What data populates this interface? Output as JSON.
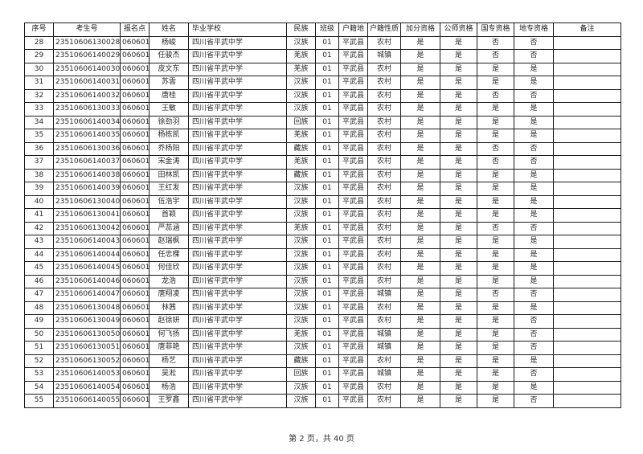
{
  "page": {
    "footer": "第 2 页，共 40 页"
  },
  "table": {
    "headers": [
      "序号",
      "考生号",
      "报名点",
      "姓名",
      "毕业学校",
      "民族",
      "班级",
      "户籍地",
      "户籍性质",
      "加分资格",
      "公师资格",
      "国专资格",
      "地专资格",
      "备注"
    ],
    "rows": [
      [
        "28",
        "23510606130028",
        "060601",
        "杨峻",
        "四川省平武中学",
        "汉族",
        "01",
        "平武县",
        "农村",
        "是",
        "是",
        "否",
        "否",
        ""
      ],
      [
        "29",
        "23510606140029",
        "060601",
        "任骏杰",
        "四川省平武中学",
        "羌族",
        "01",
        "平武县",
        "城镇",
        "是",
        "是",
        "否",
        "否",
        ""
      ],
      [
        "30",
        "23510606140030",
        "060601",
        "皮文东",
        "四川省平武中学",
        "羌族",
        "01",
        "平武县",
        "农村",
        "是",
        "是",
        "是",
        "是",
        ""
      ],
      [
        "31",
        "23510606140031",
        "060601",
        "苏雲",
        "四川省平武中学",
        "汉族",
        "01",
        "平武县",
        "农村",
        "是",
        "是",
        "是",
        "是",
        ""
      ],
      [
        "32",
        "23510606140032",
        "060601",
        "唐桂",
        "四川省平武中学",
        "汉族",
        "01",
        "平武县",
        "农村",
        "是",
        "是",
        "否",
        "否",
        ""
      ],
      [
        "33",
        "23510606130033",
        "060601",
        "王敏",
        "四川省平武中学",
        "汉族",
        "01",
        "平武县",
        "农村",
        "是",
        "是",
        "是",
        "是",
        ""
      ],
      [
        "34",
        "23510606140034",
        "060601",
        "徐劲羽",
        "四川省平武中学",
        "回族",
        "01",
        "平武县",
        "农村",
        "是",
        "是",
        "是",
        "是",
        ""
      ],
      [
        "35",
        "23510606140035",
        "060601",
        "杨栋凯",
        "四川省平武中学",
        "羌族",
        "01",
        "平武县",
        "农村",
        "是",
        "是",
        "是",
        "是",
        ""
      ],
      [
        "36",
        "23510606130036",
        "060601",
        "乔杨阳",
        "四川省平武中学",
        "藏族",
        "01",
        "平武县",
        "农村",
        "是",
        "是",
        "否",
        "否",
        ""
      ],
      [
        "37",
        "23510606140037",
        "060601",
        "宋金涛",
        "四川省平武中学",
        "羌族",
        "01",
        "平武县",
        "农村",
        "是",
        "是",
        "否",
        "否",
        ""
      ],
      [
        "38",
        "23510606140038",
        "060601",
        "田林凯",
        "四川省平武中学",
        "藏族",
        "01",
        "平武县",
        "农村",
        "是",
        "是",
        "是",
        "是",
        ""
      ],
      [
        "39",
        "23510606140039",
        "060601",
        "王红发",
        "四川省平武中学",
        "汉族",
        "01",
        "平武县",
        "农村",
        "是",
        "是",
        "是",
        "是",
        ""
      ],
      [
        "40",
        "23510606130040",
        "060601",
        "伍浩宇",
        "四川省平武中学",
        "汉族",
        "01",
        "平武县",
        "农村",
        "是",
        "是",
        "是",
        "是",
        ""
      ],
      [
        "41",
        "23510606130041",
        "060601",
        "首颖",
        "四川省平武中学",
        "汉族",
        "01",
        "平武县",
        "农村",
        "是",
        "是",
        "是",
        "是",
        ""
      ],
      [
        "42",
        "23510606130042",
        "060601",
        "严蕊涵",
        "四川省平武中学",
        "羌族",
        "01",
        "平武县",
        "农村",
        "是",
        "是",
        "否",
        "否",
        ""
      ],
      [
        "43",
        "23510606140043",
        "060601",
        "赵瑞枫",
        "四川省平武中学",
        "汉族",
        "01",
        "平武县",
        "农村",
        "是",
        "是",
        "是",
        "是",
        ""
      ],
      [
        "44",
        "23510606140044",
        "060601",
        "任忠棵",
        "四川省平武中学",
        "汉族",
        "01",
        "平武县",
        "农村",
        "是",
        "是",
        "是",
        "是",
        ""
      ],
      [
        "45",
        "23510606140045",
        "060601",
        "何佳欣",
        "四川省平武中学",
        "汉族",
        "01",
        "平武县",
        "农村",
        "是",
        "是",
        "是",
        "是",
        ""
      ],
      [
        "46",
        "23510606140046",
        "060601",
        "龙浩",
        "四川省平武中学",
        "汉族",
        "01",
        "平武县",
        "农村",
        "是",
        "是",
        "是",
        "是",
        ""
      ],
      [
        "47",
        "23510606140047",
        "060601",
        "唐翔凌",
        "四川省平武中学",
        "汉族",
        "01",
        "平武县",
        "城镇",
        "是",
        "是",
        "否",
        "否",
        ""
      ],
      [
        "48",
        "23510606130048",
        "060601",
        "林茜",
        "四川省平武中学",
        "汉族",
        "01",
        "平武县",
        "农村",
        "是",
        "是",
        "是",
        "是",
        ""
      ],
      [
        "49",
        "23510606130049",
        "060601",
        "赵徐妍",
        "四川省平武中学",
        "汉族",
        "01",
        "平武县",
        "农村",
        "是",
        "是",
        "是",
        "否",
        ""
      ],
      [
        "50",
        "23510606130050",
        "060601",
        "何飞扬",
        "四川省平武中学",
        "羌族",
        "01",
        "平武县",
        "城镇",
        "是",
        "是",
        "是",
        "否",
        ""
      ],
      [
        "51",
        "23510606130051",
        "060601",
        "唐菲艳",
        "四川省平武中学",
        "汉族",
        "01",
        "平武县",
        "城镇",
        "是",
        "是",
        "是",
        "否",
        ""
      ],
      [
        "52",
        "23510606130052",
        "060601",
        "杨艺",
        "四川省平武中学",
        "藏族",
        "01",
        "平武县",
        "农村",
        "是",
        "是",
        "是",
        "是",
        ""
      ],
      [
        "53",
        "23510606140053",
        "060601",
        "吴淞",
        "四川省平武中学",
        "回族",
        "01",
        "平武县",
        "城镇",
        "是",
        "是",
        "是",
        "否",
        ""
      ],
      [
        "54",
        "23510606140054",
        "060601",
        "杨浩",
        "四川省平武中学",
        "汉族",
        "01",
        "平武县",
        "农村",
        "是",
        "是",
        "是",
        "是",
        ""
      ],
      [
        "55",
        "23510606140055",
        "060601",
        "王罗鑫",
        "四川省平武中学",
        "汉族",
        "01",
        "平武县",
        "农村",
        "是",
        "是",
        "是",
        "否",
        ""
      ]
    ]
  }
}
